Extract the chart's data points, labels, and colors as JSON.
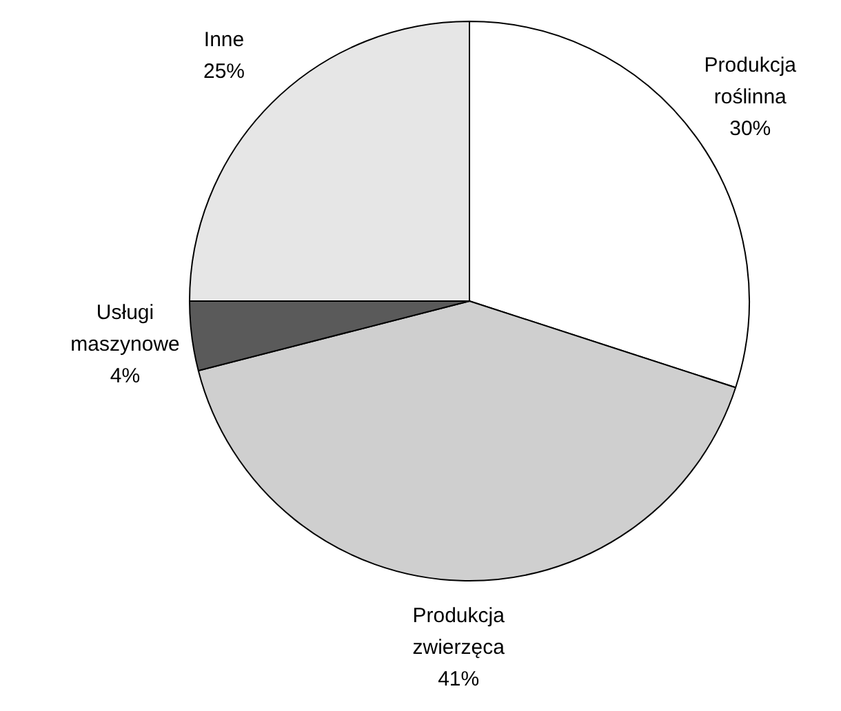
{
  "chart_data": {
    "type": "pie",
    "categories": [
      "Produkcja roślinna",
      "Produkcja zwierzęca",
      "Usługi maszynowe",
      "Inne"
    ],
    "values": [
      30,
      41,
      4,
      25
    ],
    "value_labels": [
      "30%",
      "41%",
      "4%",
      "25%"
    ],
    "colors": [
      "#ffffff",
      "#cfcfcf",
      "#5a5a5a",
      "#e6e6e6"
    ]
  }
}
